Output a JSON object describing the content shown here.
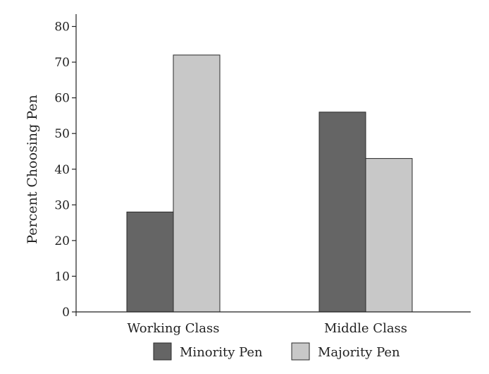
{
  "chart_data": {
    "type": "bar",
    "title": "",
    "xlabel": "",
    "ylabel": "Percent Choosing Pen",
    "categories": [
      "Working Class",
      "Middle Class"
    ],
    "series": [
      {
        "name": "Minority Pen",
        "values": [
          28,
          56
        ],
        "color": "#656565"
      },
      {
        "name": "Majority Pen",
        "values": [
          72,
          43
        ],
        "color": "#c8c8c8"
      }
    ],
    "ylim": [
      0,
      80
    ],
    "yticks": [
      0,
      10,
      20,
      30,
      40,
      50,
      60,
      70,
      80
    ],
    "grid": false,
    "legend_position": "bottom"
  }
}
